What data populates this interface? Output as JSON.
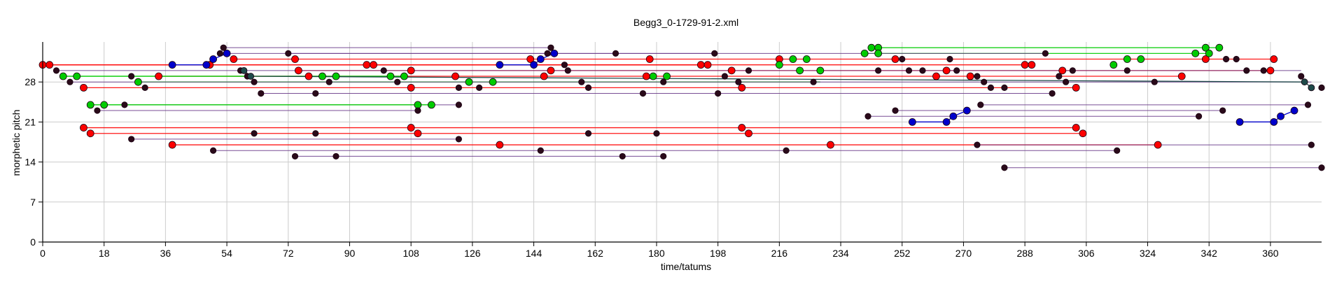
{
  "chart_data": {
    "type": "scatter",
    "title": "Begg3_0-1729-91-2.xml",
    "xlabel": "time/tatums",
    "ylabel": "morphetic pitch",
    "xlim": [
      0,
      375
    ],
    "ylim": [
      0,
      35
    ],
    "xticks": [
      0,
      18,
      36,
      54,
      72,
      90,
      108,
      126,
      144,
      162,
      180,
      198,
      216,
      234,
      252,
      270,
      288,
      306,
      324,
      342,
      360
    ],
    "yticks": [
      0,
      7,
      14,
      21,
      28
    ],
    "grid": true,
    "colors": {
      "red": "#ff0000",
      "green": "#00cc00",
      "blue": "#0000cc",
      "dark": "#2a0a1a",
      "purple": "#6a3a8a",
      "teal": "#1f4a4a"
    },
    "series": [
      {
        "color": "red",
        "points": [
          [
            0,
            31
          ],
          [
            2,
            31
          ],
          [
            49,
            31
          ],
          [
            95,
            31
          ],
          [
            97,
            31
          ],
          [
            193,
            31
          ],
          [
            195,
            31
          ],
          [
            288,
            31
          ],
          [
            290,
            31
          ]
        ]
      },
      {
        "color": "red",
        "points": [
          [
            56,
            32
          ],
          [
            74,
            32
          ],
          [
            143,
            32
          ],
          [
            178,
            32
          ],
          [
            216,
            32
          ],
          [
            250,
            32
          ],
          [
            341,
            32
          ],
          [
            361,
            32
          ]
        ]
      },
      {
        "color": "red",
        "points": [
          [
            75,
            30
          ],
          [
            108,
            30
          ],
          [
            149,
            30
          ],
          [
            202,
            30
          ],
          [
            265,
            30
          ],
          [
            299,
            30
          ],
          [
            360,
            30
          ]
        ]
      },
      {
        "color": "red",
        "points": [
          [
            34,
            29
          ],
          [
            78,
            29
          ],
          [
            121,
            29
          ],
          [
            147,
            29
          ],
          [
            177,
            29
          ],
          [
            262,
            29
          ],
          [
            272,
            29
          ],
          [
            334,
            29
          ]
        ]
      },
      {
        "color": "red",
        "points": [
          [
            12,
            27
          ],
          [
            108,
            27
          ],
          [
            205,
            27
          ],
          [
            303,
            27
          ]
        ]
      },
      {
        "color": "red",
        "points": [
          [
            12,
            20
          ],
          [
            108,
            20
          ],
          [
            205,
            20
          ],
          [
            303,
            20
          ]
        ]
      },
      {
        "color": "red",
        "points": [
          [
            14,
            19
          ],
          [
            110,
            19
          ],
          [
            207,
            19
          ],
          [
            305,
            19
          ]
        ]
      },
      {
        "color": "red",
        "points": [
          [
            38,
            17
          ],
          [
            134,
            17
          ],
          [
            231,
            17
          ],
          [
            327,
            17
          ]
        ]
      },
      {
        "color": "green",
        "points": [
          [
            6,
            29
          ],
          [
            10,
            29
          ],
          [
            102,
            29
          ],
          [
            106,
            29
          ]
        ]
      },
      {
        "color": "green",
        "points": [
          [
            28,
            28
          ],
          [
            82,
            29
          ],
          [
            86,
            29
          ],
          [
            125,
            28
          ],
          [
            132,
            28
          ],
          [
            179,
            29
          ],
          [
            183,
            29
          ],
          [
            222,
            30
          ],
          [
            228,
            30
          ]
        ]
      },
      {
        "color": "green",
        "points": [
          [
            14,
            24
          ],
          [
            18,
            24
          ],
          [
            110,
            24
          ],
          [
            114,
            24
          ]
        ]
      },
      {
        "color": "green",
        "points": [
          [
            243,
            34
          ],
          [
            245,
            34
          ],
          [
            341,
            34
          ],
          [
            345,
            34
          ],
          [
            241,
            33
          ],
          [
            245,
            33
          ],
          [
            338,
            33
          ],
          [
            342,
            33
          ]
        ]
      },
      {
        "color": "green",
        "points": [
          [
            216,
            31
          ],
          [
            220,
            32
          ],
          [
            224,
            32
          ],
          [
            314,
            31
          ],
          [
            318,
            32
          ],
          [
            322,
            32
          ]
        ]
      },
      {
        "color": "blue",
        "points": [
          [
            38,
            31
          ],
          [
            48,
            31
          ],
          [
            50,
            32
          ],
          [
            54,
            33
          ]
        ]
      },
      {
        "color": "blue",
        "points": [
          [
            134,
            31
          ],
          [
            144,
            31
          ],
          [
            146,
            32
          ],
          [
            150,
            33
          ]
        ]
      },
      {
        "color": "blue",
        "points": [
          [
            255,
            21
          ],
          [
            265,
            21
          ],
          [
            267,
            22
          ],
          [
            271,
            23
          ]
        ]
      },
      {
        "color": "blue",
        "points": [
          [
            351,
            21
          ],
          [
            361,
            21
          ],
          [
            363,
            22
          ],
          [
            367,
            23
          ]
        ]
      },
      {
        "color": "dark",
        "points": [
          [
            4,
            30
          ],
          [
            8,
            28
          ],
          [
            26,
            29
          ],
          [
            30,
            27
          ],
          [
            52,
            33
          ],
          [
            53,
            34
          ],
          [
            58,
            30
          ],
          [
            60,
            29
          ],
          [
            62,
            28
          ],
          [
            64,
            26
          ],
          [
            72,
            33
          ],
          [
            80,
            26
          ],
          [
            84,
            28
          ],
          [
            100,
            30
          ],
          [
            104,
            28
          ],
          [
            122,
            27
          ],
          [
            128,
            27
          ],
          [
            148,
            33
          ],
          [
            149,
            34
          ],
          [
            153,
            31
          ],
          [
            154,
            30
          ],
          [
            158,
            28
          ],
          [
            160,
            27
          ],
          [
            168,
            33
          ],
          [
            176,
            26
          ],
          [
            182,
            28
          ],
          [
            197,
            33
          ],
          [
            198,
            26
          ],
          [
            200,
            29
          ],
          [
            204,
            28
          ],
          [
            207,
            30
          ],
          [
            226,
            28
          ],
          [
            245,
            30
          ],
          [
            252,
            32
          ],
          [
            254,
            30
          ],
          [
            258,
            30
          ],
          [
            266,
            32
          ],
          [
            268,
            30
          ],
          [
            274,
            29
          ],
          [
            276,
            28
          ],
          [
            278,
            27
          ],
          [
            282,
            27
          ],
          [
            294,
            33
          ],
          [
            296,
            26
          ],
          [
            298,
            29
          ],
          [
            300,
            28
          ],
          [
            302,
            30
          ],
          [
            318,
            30
          ],
          [
            326,
            28
          ],
          [
            347,
            32
          ],
          [
            350,
            32
          ],
          [
            353,
            30
          ],
          [
            358,
            30
          ],
          [
            369,
            29
          ],
          [
            372,
            27
          ],
          [
            375,
            27
          ]
        ]
      },
      {
        "color": "dark",
        "points": [
          [
            24,
            24
          ],
          [
            16,
            23
          ],
          [
            26,
            18
          ],
          [
            62,
            19
          ],
          [
            80,
            19
          ],
          [
            122,
            18
          ],
          [
            110,
            23
          ],
          [
            122,
            24
          ],
          [
            160,
            19
          ],
          [
            180,
            19
          ]
        ]
      },
      {
        "color": "dark",
        "points": [
          [
            50,
            16
          ],
          [
            74,
            15
          ],
          [
            86,
            15
          ],
          [
            146,
            16
          ],
          [
            170,
            15
          ],
          [
            182,
            15
          ],
          [
            218,
            16
          ],
          [
            274,
            17
          ],
          [
            315,
            16
          ],
          [
            372,
            17
          ],
          [
            282,
            13
          ],
          [
            375,
            13
          ]
        ]
      },
      {
        "color": "dark",
        "points": [
          [
            242,
            22
          ],
          [
            250,
            23
          ],
          [
            275,
            24
          ],
          [
            339,
            22
          ],
          [
            346,
            23
          ],
          [
            371,
            24
          ]
        ]
      },
      {
        "color": "teal",
        "points": [
          [
            59,
            30
          ],
          [
            61,
            29
          ],
          [
            370,
            28
          ],
          [
            372,
            27
          ]
        ]
      }
    ],
    "lines": [
      {
        "color": "red",
        "x1": 0,
        "x2": 193,
        "y": 31
      },
      {
        "color": "red",
        "x1": 2,
        "x2": 195,
        "y": 31
      },
      {
        "color": "red",
        "x1": 95,
        "x2": 290,
        "y": 31
      },
      {
        "color": "red",
        "x1": 56,
        "x2": 361,
        "y": 32
      },
      {
        "color": "red",
        "x1": 75,
        "x2": 360,
        "y": 30
      },
      {
        "color": "red",
        "x1": 34,
        "x2": 334,
        "y": 29
      },
      {
        "color": "red",
        "x1": 12,
        "x2": 303,
        "y": 27
      },
      {
        "color": "red",
        "x1": 12,
        "x2": 303,
        "y": 20
      },
      {
        "color": "red",
        "x1": 14,
        "x2": 305,
        "y": 19
      },
      {
        "color": "red",
        "x1": 38,
        "x2": 327,
        "y": 17
      },
      {
        "color": "green",
        "x1": 6,
        "x2": 106,
        "y": 29
      },
      {
        "color": "green",
        "x1": 14,
        "x2": 114,
        "y": 24
      },
      {
        "color": "green",
        "x1": 243,
        "x2": 345,
        "y": 34
      },
      {
        "color": "green",
        "x1": 241,
        "x2": 342,
        "y": 33
      },
      {
        "color": "green",
        "x1": 28,
        "x2": 228,
        "y": 28
      },
      {
        "color": "blue",
        "x1": 255,
        "x2": 265,
        "y": 21
      },
      {
        "color": "blue",
        "x1": 351,
        "x2": 361,
        "y": 21
      },
      {
        "color": "purple",
        "x1": 53,
        "x2": 149,
        "y": 34
      },
      {
        "color": "purple",
        "x1": 52,
        "x2": 197,
        "y": 33
      },
      {
        "color": "purple",
        "x1": 72,
        "x2": 294,
        "y": 33
      },
      {
        "color": "purple",
        "x1": 64,
        "x2": 296,
        "y": 26
      },
      {
        "color": "purple",
        "x1": 4,
        "x2": 369,
        "y": 30
      },
      {
        "color": "purple",
        "x1": 8,
        "x2": 372,
        "y": 28
      },
      {
        "color": "purple",
        "x1": 24,
        "x2": 122,
        "y": 24
      },
      {
        "color": "purple",
        "x1": 16,
        "x2": 110,
        "y": 23
      },
      {
        "color": "purple",
        "x1": 26,
        "x2": 122,
        "y": 18
      },
      {
        "color": "purple",
        "x1": 50,
        "x2": 315,
        "y": 16
      },
      {
        "color": "purple",
        "x1": 74,
        "x2": 182,
        "y": 15
      },
      {
        "color": "purple",
        "x1": 274,
        "x2": 372,
        "y": 17
      },
      {
        "color": "purple",
        "x1": 282,
        "x2": 375,
        "y": 13
      },
      {
        "color": "purple",
        "x1": 242,
        "x2": 339,
        "y": 22
      },
      {
        "color": "purple",
        "x1": 250,
        "x2": 346,
        "y": 23
      },
      {
        "color": "purple",
        "x1": 275,
        "x2": 371,
        "y": 24
      }
    ]
  }
}
